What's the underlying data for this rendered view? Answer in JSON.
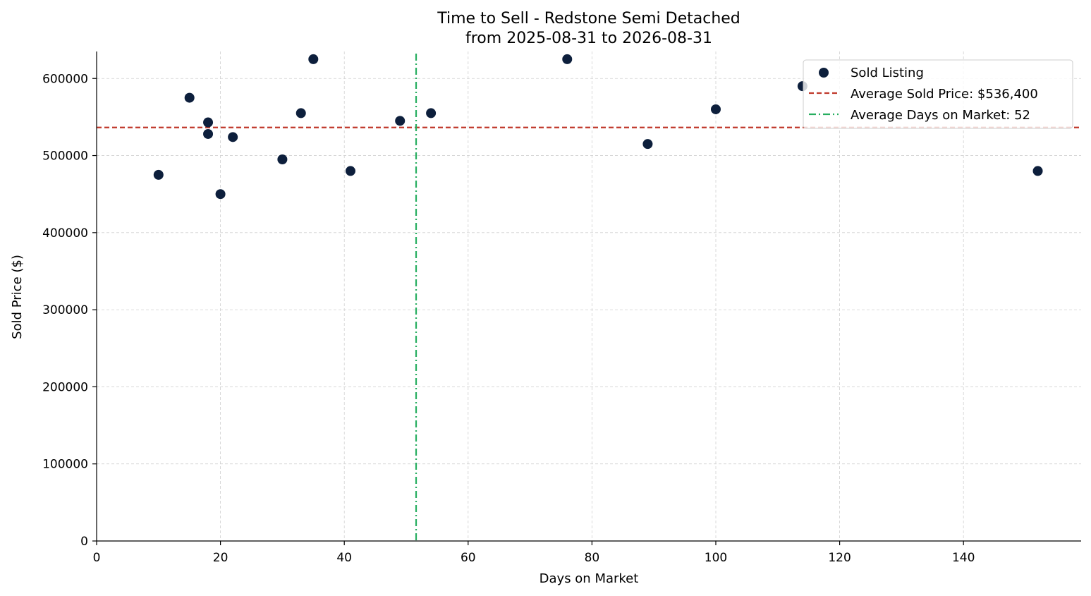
{
  "chart_data": {
    "type": "scatter",
    "title": "Time to Sell - Redstone Semi Detached",
    "subtitle": "from 2025-08-31 to 2026-08-31",
    "xlabel": "Days on Market",
    "ylabel": "Sold Price ($)",
    "xlim": [
      0,
      159
    ],
    "ylim": [
      0,
      635000
    ],
    "xticks": [
      0,
      20,
      40,
      60,
      80,
      100,
      120,
      140
    ],
    "yticks": [
      0,
      100000,
      200000,
      300000,
      400000,
      500000,
      600000
    ],
    "grid": true,
    "legend_position": "top-right",
    "series": [
      {
        "name": "Sold Listing",
        "color": "#0d1f3c",
        "points": [
          {
            "x": 10,
            "y": 475000
          },
          {
            "x": 15,
            "y": 575000
          },
          {
            "x": 18,
            "y": 543000
          },
          {
            "x": 18,
            "y": 528000
          },
          {
            "x": 20,
            "y": 450000
          },
          {
            "x": 22,
            "y": 524000
          },
          {
            "x": 30,
            "y": 495000
          },
          {
            "x": 33,
            "y": 555000
          },
          {
            "x": 35,
            "y": 625000
          },
          {
            "x": 41,
            "y": 480000
          },
          {
            "x": 49,
            "y": 545000
          },
          {
            "x": 54,
            "y": 555000
          },
          {
            "x": 76,
            "y": 625000
          },
          {
            "x": 89,
            "y": 515000
          },
          {
            "x": 100,
            "y": 560000
          },
          {
            "x": 114,
            "y": 590000
          },
          {
            "x": 152,
            "y": 480000
          }
        ]
      }
    ],
    "reference_lines": [
      {
        "name": "Average Sold Price: $536,400",
        "orientation": "horizontal",
        "value": 536400,
        "color": "#c0392b",
        "style": "dashed"
      },
      {
        "name": "Average Days on Market: 52",
        "orientation": "vertical",
        "value": 51.6,
        "color": "#27ae60",
        "style": "dash-dot"
      }
    ]
  }
}
